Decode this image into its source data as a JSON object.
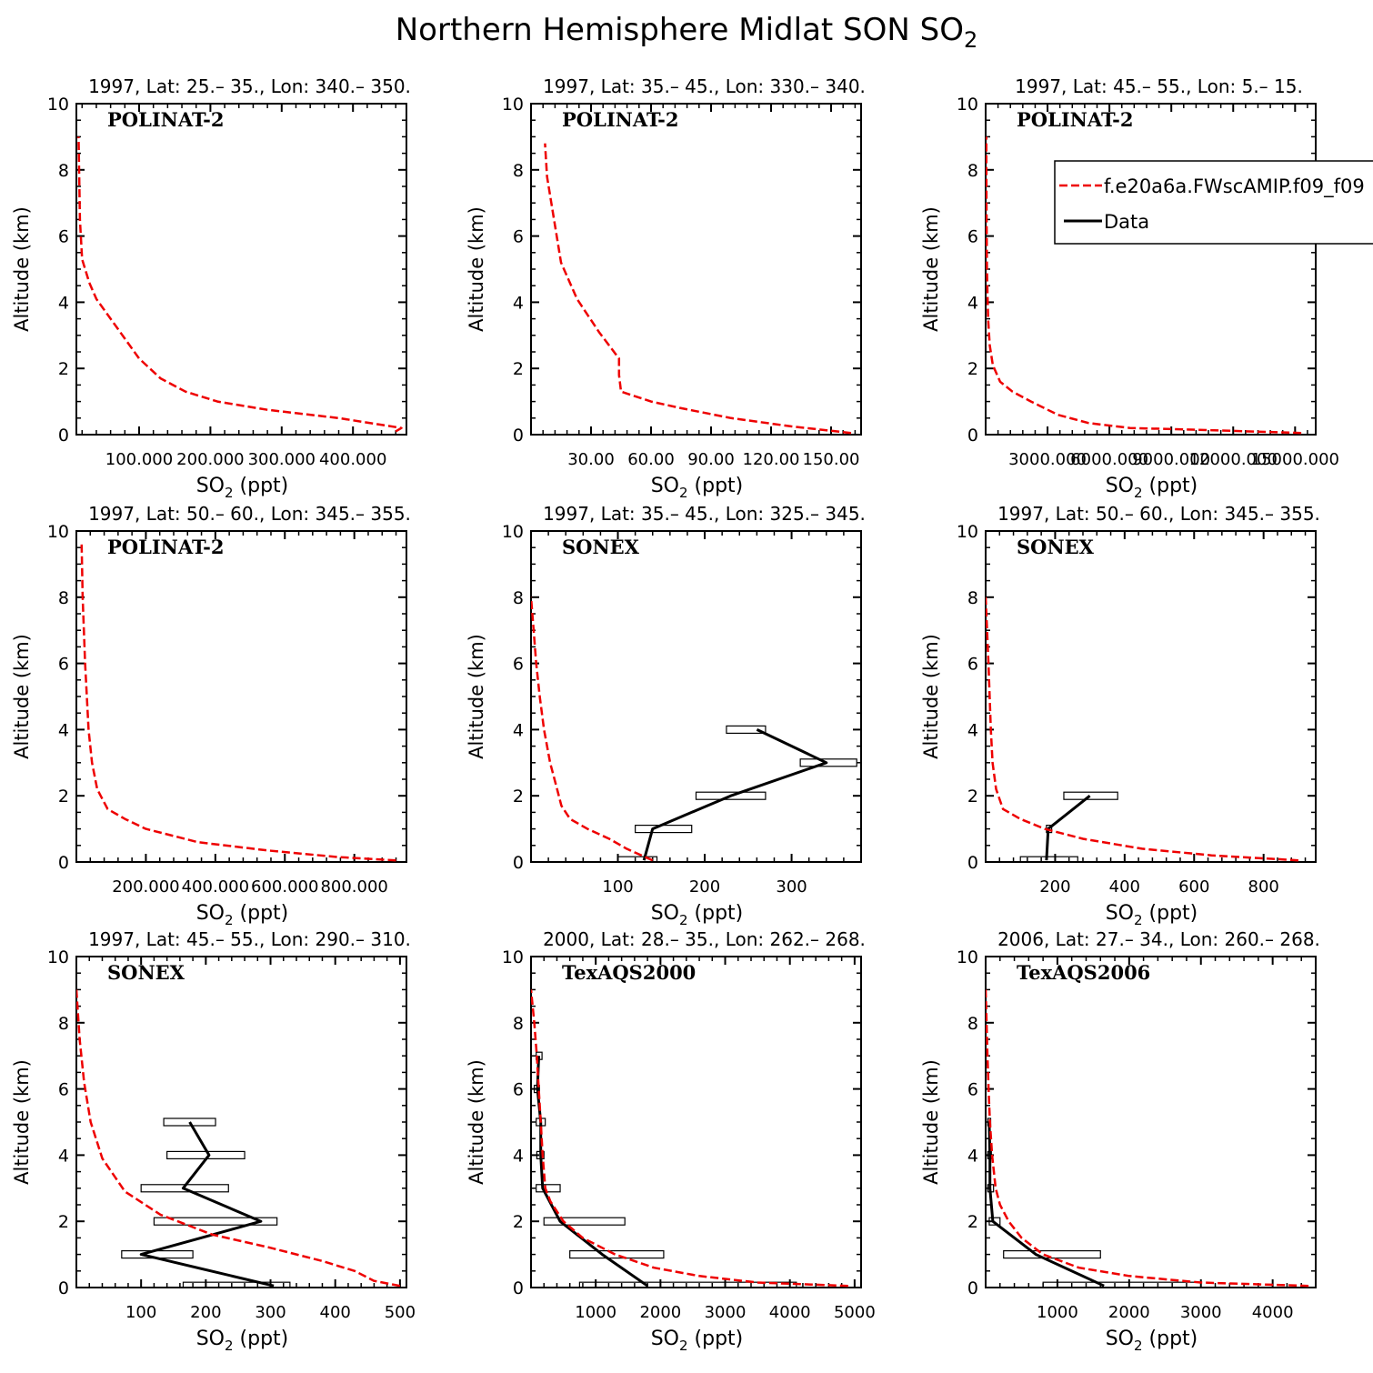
{
  "figure": {
    "title": "Northern Hemisphere Midlat SON SO",
    "title_sub": "2",
    "xlabel_main": "SO",
    "xlabel_sub": "2",
    "xlabel_units": " (ppt)",
    "ylabel": "Altitude (km)"
  },
  "legend": {
    "model_label": "f.e20a6a.FWscAMIP.f09_f09",
    "data_label": "Data",
    "model_color": "#ee0000",
    "data_color": "#000000",
    "placement": "upper-right of panel 3"
  },
  "chart_data": [
    {
      "type": "line",
      "subplot_title": "1997, Lat: 25.– 35., Lon: 340.– 350.",
      "campaign": "POLINAT-2",
      "xlim": [
        12,
        475
      ],
      "ylim": [
        0,
        10
      ],
      "xticks": [
        100,
        200,
        300,
        400
      ],
      "xtick_labels": [
        "100.000",
        "200.000",
        "300.000",
        "400.000"
      ],
      "yticks": [
        0,
        2,
        4,
        6,
        8,
        10
      ],
      "model": {
        "alt": [
          0.1,
          0.2,
          0.5,
          0.75,
          1.0,
          1.3,
          1.7,
          2.3,
          3.2,
          4.1,
          4.6,
          5.3,
          6.5,
          9.0
        ],
        "so2": [
          460,
          468,
          380,
          280,
          210,
          165,
          130,
          100,
          70,
          40,
          30,
          20,
          17,
          15
        ]
      },
      "observations": []
    },
    {
      "type": "line",
      "subplot_title": "1997, Lat: 35.– 45., Lon: 330.– 340.",
      "campaign": "POLINAT-2",
      "xlim": [
        0,
        165
      ],
      "ylim": [
        0,
        10
      ],
      "xticks": [
        30,
        60,
        90,
        120,
        150
      ],
      "xtick_labels": [
        "30.00",
        "60.00",
        "90.00",
        "120.00",
        "150.00"
      ],
      "yticks": [
        0,
        2,
        4,
        6,
        8,
        10
      ],
      "model": {
        "alt": [
          0.05,
          0.25,
          0.5,
          0.8,
          1.0,
          1.3,
          1.8,
          2.3,
          3.1,
          4.1,
          5.2,
          7.8,
          8.8
        ],
        "so2": [
          160,
          130,
          100,
          75,
          60,
          45,
          44,
          44,
          34,
          23,
          15,
          8,
          7
        ]
      },
      "observations": []
    },
    {
      "type": "line",
      "subplot_title": "1997, Lat: 45.– 55., Lon: 5.– 15.",
      "campaign": "POLINAT-2",
      "xlim": [
        0,
        16000
      ],
      "ylim": [
        0,
        10
      ],
      "xticks": [
        3000,
        6000,
        9000,
        12000,
        15000
      ],
      "xtick_labels": [
        "3000.000",
        "6000.000",
        "9000.000",
        "12000.000",
        "15000.000"
      ],
      "yticks": [
        0,
        2,
        4,
        6,
        8,
        10
      ],
      "model": {
        "alt": [
          0.05,
          0.15,
          0.2,
          0.35,
          0.6,
          1.0,
          1.3,
          1.6,
          2.1,
          2.7,
          3.5,
          5,
          7,
          9
        ],
        "so2": [
          15300,
          10000,
          7000,
          5000,
          3500,
          2200,
          1300,
          700,
          350,
          200,
          120,
          60,
          40,
          30
        ]
      },
      "observations": []
    },
    {
      "type": "line",
      "subplot_title": "1997, Lat: 50.– 60., Lon: 345.– 355.",
      "campaign": "POLINAT-2",
      "xlim": [
        0,
        950
      ],
      "ylim": [
        0,
        10
      ],
      "xticks": [
        200,
        400,
        600,
        800
      ],
      "xtick_labels": [
        "200.000",
        "400.000",
        "600.000",
        "800.000"
      ],
      "yticks": [
        0,
        2,
        4,
        6,
        8,
        10
      ],
      "model": {
        "alt": [
          0.05,
          0.15,
          0.35,
          0.6,
          1.0,
          1.3,
          1.6,
          2.2,
          3.0,
          4.0,
          6.0,
          8.0,
          9.7
        ],
        "so2": [
          920,
          750,
          550,
          350,
          200,
          140,
          90,
          60,
          45,
          35,
          25,
          18,
          15
        ]
      },
      "observations": []
    },
    {
      "type": "line",
      "subplot_title": "1997, Lat: 35.– 45., Lon: 325.– 345.",
      "campaign": "SONEX",
      "xlim": [
        0,
        380
      ],
      "ylim": [
        0,
        10
      ],
      "xticks": [
        100,
        200,
        300
      ],
      "xtick_labels": [
        "100",
        "200",
        "300"
      ],
      "yticks": [
        0,
        2,
        4,
        6,
        8,
        10
      ],
      "model": {
        "alt": [
          0.05,
          0.4,
          0.7,
          1.0,
          1.3,
          1.7,
          2.2,
          3.0,
          4.0,
          5.0,
          6.0,
          7.0,
          8.0
        ],
        "so2": [
          140,
          110,
          90,
          65,
          45,
          35,
          30,
          22,
          15,
          10,
          6,
          3,
          0
        ]
      },
      "observations": [
        {
          "alt": 0.05,
          "median": 130,
          "lo": 100,
          "hi": 145
        },
        {
          "alt": 1.0,
          "median": 140,
          "lo": 120,
          "hi": 185
        },
        {
          "alt": 2.0,
          "median": 230,
          "lo": 190,
          "hi": 270
        },
        {
          "alt": 3.0,
          "median": 340,
          "lo": 310,
          "hi": 375
        },
        {
          "alt": 4.0,
          "median": 260,
          "lo": 225,
          "hi": 270
        }
      ]
    },
    {
      "type": "line",
      "subplot_title": "1997, Lat: 50.– 60., Lon: 345.– 355.",
      "campaign": "SONEX",
      "xlim": [
        0,
        950
      ],
      "ylim": [
        0,
        10
      ],
      "xticks": [
        200,
        400,
        600,
        800
      ],
      "xtick_labels": [
        "200",
        "400",
        "600",
        "800"
      ],
      "yticks": [
        0,
        2,
        4,
        6,
        8,
        10
      ],
      "model": {
        "alt": [
          0.05,
          0.2,
          0.4,
          0.7,
          1.0,
          1.3,
          1.6,
          2.2,
          3.0,
          4.0,
          6.0,
          8.0
        ],
        "so2": [
          900,
          650,
          450,
          280,
          170,
          100,
          50,
          30,
          20,
          15,
          8,
          0
        ]
      },
      "observations": [
        {
          "alt": 0.05,
          "median": 175,
          "lo": 100,
          "hi": 265
        },
        {
          "alt": 1.0,
          "median": 180,
          "lo": 175,
          "hi": 190
        },
        {
          "alt": 2.0,
          "median": 300,
          "lo": 225,
          "hi": 380
        }
      ]
    },
    {
      "type": "line",
      "subplot_title": "1997, Lat: 45.– 55., Lon: 290.– 310.",
      "campaign": "SONEX",
      "xlim": [
        0,
        510
      ],
      "ylim": [
        0,
        10
      ],
      "xticks": [
        100,
        200,
        300,
        400,
        500
      ],
      "xtick_labels": [
        "100",
        "200",
        "300",
        "400",
        "500"
      ],
      "yticks": [
        0,
        2,
        4,
        6,
        8,
        10
      ],
      "model": {
        "alt": [
          0.05,
          0.2,
          0.5,
          0.8,
          1.2,
          1.6,
          2.2,
          2.9,
          3.9,
          5.0,
          6.2,
          7.5,
          9.0
        ],
        "so2": [
          500,
          460,
          430,
          380,
          300,
          210,
          130,
          75,
          40,
          22,
          12,
          5,
          0
        ]
      },
      "observations": [
        {
          "alt": 0.05,
          "median": 305,
          "lo": 165,
          "hi": 330
        },
        {
          "alt": 1.0,
          "median": 100,
          "lo": 70,
          "hi": 180
        },
        {
          "alt": 2.0,
          "median": 285,
          "lo": 120,
          "hi": 310
        },
        {
          "alt": 3.0,
          "median": 165,
          "lo": 100,
          "hi": 235
        },
        {
          "alt": 4.0,
          "median": 205,
          "lo": 140,
          "hi": 260
        },
        {
          "alt": 5.0,
          "median": 175,
          "lo": 135,
          "hi": 215
        }
      ]
    },
    {
      "type": "line",
      "subplot_title": "2000, Lat: 28.– 35., Lon: 262.– 268.",
      "campaign": "TexAQS2000",
      "xlim": [
        0,
        5100
      ],
      "ylim": [
        0,
        10
      ],
      "xticks": [
        1000,
        2000,
        3000,
        4000,
        5000
      ],
      "xtick_labels": [
        "1000",
        "2000",
        "3000",
        "4000",
        "5000"
      ],
      "yticks": [
        0,
        2,
        4,
        6,
        8,
        10
      ],
      "model": {
        "alt": [
          0.05,
          0.15,
          0.35,
          0.6,
          1.0,
          1.5,
          2.0,
          2.6,
          3.0,
          4.0,
          5.0,
          6.0,
          7.0,
          8.0,
          9.0
        ],
        "so2": [
          4900,
          3500,
          2600,
          1900,
          1300,
          800,
          500,
          300,
          220,
          180,
          150,
          120,
          90,
          50,
          0
        ]
      },
      "observations": [
        {
          "alt": 0.05,
          "median": 1800,
          "lo": 750,
          "hi": 4100
        },
        {
          "alt": 1.0,
          "median": 1100,
          "lo": 600,
          "hi": 2050
        },
        {
          "alt": 2.0,
          "median": 450,
          "lo": 200,
          "hi": 1450
        },
        {
          "alt": 3.0,
          "median": 180,
          "lo": 80,
          "hi": 450
        },
        {
          "alt": 4.0,
          "median": 150,
          "lo": 90,
          "hi": 200
        },
        {
          "alt": 5.0,
          "median": 150,
          "lo": 80,
          "hi": 220
        },
        {
          "alt": 6.0,
          "median": 100,
          "lo": 50,
          "hi": 130
        },
        {
          "alt": 7.0,
          "median": 120,
          "lo": 80,
          "hi": 170
        }
      ]
    },
    {
      "type": "line",
      "subplot_title": "2006, Lat: 27.– 34., Lon: 260.– 268.",
      "campaign": "TexAQS2006",
      "xlim": [
        0,
        4600
      ],
      "ylim": [
        0,
        10
      ],
      "xticks": [
        1000,
        2000,
        3000,
        4000
      ],
      "xtick_labels": [
        "1000",
        "2000",
        "3000",
        "4000"
      ],
      "yticks": [
        0,
        2,
        4,
        6,
        8,
        10
      ],
      "model": {
        "alt": [
          0.05,
          0.15,
          0.35,
          0.6,
          1.0,
          1.5,
          2.0,
          2.5,
          3.0,
          4.0,
          5.0,
          6.0,
          7.0,
          9.0
        ],
        "so2": [
          4500,
          3000,
          2000,
          1300,
          800,
          500,
          320,
          200,
          140,
          90,
          60,
          40,
          25,
          0
        ]
      },
      "observations": [
        {
          "alt": 0.05,
          "median": 1650,
          "lo": 800,
          "hi": 3000
        },
        {
          "alt": 1.0,
          "median": 700,
          "lo": 250,
          "hi": 1600
        },
        {
          "alt": 2.0,
          "median": 100,
          "lo": 50,
          "hi": 200
        },
        {
          "alt": 3.0,
          "median": 60,
          "lo": 30,
          "hi": 110
        },
        {
          "alt": 4.0,
          "median": 60,
          "lo": 30,
          "hi": 80
        },
        {
          "alt": 5.0,
          "median": 50,
          "lo": 30,
          "hi": 70
        }
      ]
    }
  ]
}
